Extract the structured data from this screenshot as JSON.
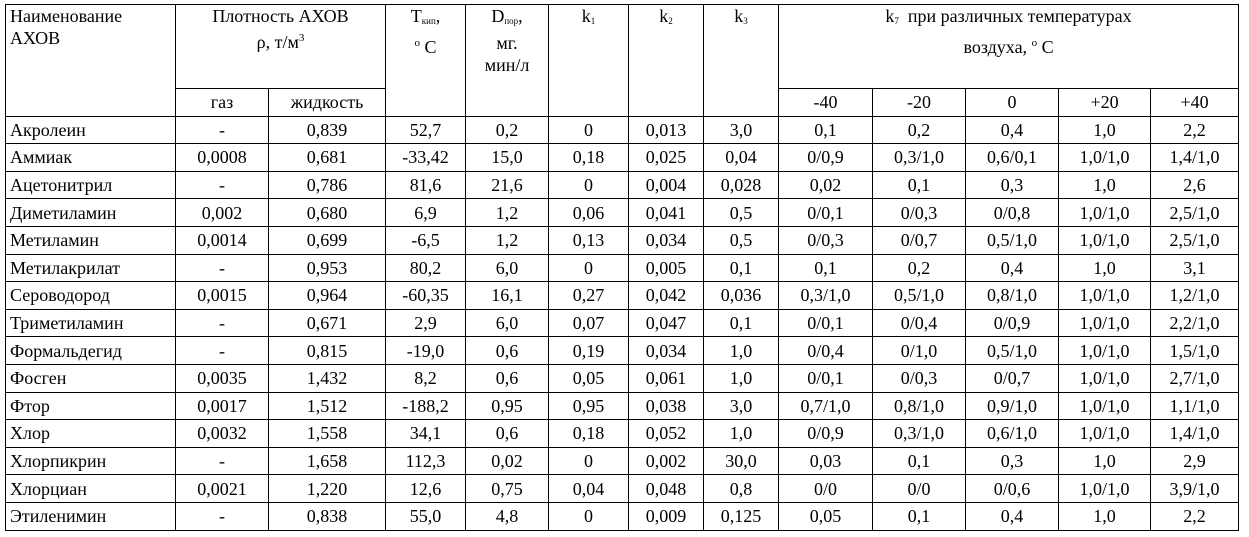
{
  "header": {
    "name_line1": "Наименование",
    "name_line2": "АХОВ",
    "density": "Плотность АХОВ",
    "density_symbol": "ρ,  т/м",
    "density_exp": "3",
    "gas": "газ",
    "liquid": "жидкость",
    "t_main": "T",
    "t_sub": "кип",
    "t_comma": ",",
    "t_deg": "о",
    "t_unit": "C",
    "d_main": "D",
    "d_sub": "пор",
    "d_comma": ",",
    "d_unit_line1": "мг.",
    "d_unit_line2": "мин/л",
    "k1_main": "k",
    "k1_sub": "1",
    "k2_main": "k",
    "k2_sub": "2",
    "k3_main": "k",
    "k3_sub": "3",
    "k7_main": "k",
    "k7_sub": "7",
    "k7_text_line1": "при различных температурах",
    "k7_text_line2": "воздуха,",
    "k7_deg": "о",
    "k7_unit": "C",
    "temps": [
      "-40",
      "-20",
      "0",
      "+20",
      "+40"
    ]
  },
  "rows": [
    [
      "Акролеин",
      "-",
      "0,839",
      "52,7",
      "0,2",
      "0",
      "0,013",
      "3,0",
      "0,1",
      "0,2",
      "0,4",
      "1,0",
      "2,2"
    ],
    [
      "Аммиак",
      "0,0008",
      "0,681",
      "-33,42",
      "15,0",
      "0,18",
      "0,025",
      "0,04",
      "0/0,9",
      "0,3/1,0",
      "0,6/0,1",
      "1,0/1,0",
      "1,4/1,0"
    ],
    [
      "Ацетонитрил",
      "-",
      "0,786",
      "81,6",
      "21,6",
      "0",
      "0,004",
      "0,028",
      "0,02",
      "0,1",
      "0,3",
      "1,0",
      "2,6"
    ],
    [
      "Диметиламин",
      "0,002",
      "0,680",
      "6,9",
      "1,2",
      "0,06",
      "0,041",
      "0,5",
      "0/0,1",
      "0/0,3",
      "0/0,8",
      "1,0/1,0",
      "2,5/1,0"
    ],
    [
      "Метиламин",
      "0,0014",
      "0,699",
      "-6,5",
      "1,2",
      "0,13",
      "0,034",
      "0,5",
      "0/0,3",
      "0/0,7",
      "0,5/1,0",
      "1,0/1,0",
      "2,5/1,0"
    ],
    [
      "Метилакрилат",
      "-",
      "0,953",
      "80,2",
      "6,0",
      "0",
      "0,005",
      "0,1",
      "0,1",
      "0,2",
      "0,4",
      "1,0",
      "3,1"
    ],
    [
      "Сероводород",
      "0,0015",
      "0,964",
      "-60,35",
      "16,1",
      "0,27",
      "0,042",
      "0,036",
      "0,3/1,0",
      "0,5/1,0",
      "0,8/1,0",
      "1,0/1,0",
      "1,2/1,0"
    ],
    [
      "Триметиламин",
      "-",
      "0,671",
      "2,9",
      "6,0",
      "0,07",
      "0,047",
      "0,1",
      "0/0,1",
      "0/0,4",
      "0/0,9",
      "1,0/1,0",
      "2,2/1,0"
    ],
    [
      "Формальдегид",
      "-",
      "0,815",
      "-19,0",
      "0,6",
      "0,19",
      "0,034",
      "1,0",
      "0/0,4",
      "0/1,0",
      "0,5/1,0",
      "1,0/1,0",
      "1,5/1,0"
    ],
    [
      "Фосген",
      "0,0035",
      "1,432",
      "8,2",
      "0,6",
      "0,05",
      "0,061",
      "1,0",
      "0/0,1",
      "0/0,3",
      "0/0,7",
      "1,0/1,0",
      "2,7/1,0"
    ],
    [
      "Фтор",
      "0,0017",
      "1,512",
      "-188,2",
      "0,95",
      "0,95",
      "0,038",
      "3,0",
      "0,7/1,0",
      "0,8/1,0",
      "0,9/1,0",
      "1,0/1,0",
      "1,1/1,0"
    ],
    [
      "Хлор",
      "0,0032",
      "1,558",
      "34,1",
      "0,6",
      "0,18",
      "0,052",
      "1,0",
      "0/0,9",
      "0,3/1,0",
      "0,6/1,0",
      "1,0/1,0",
      "1,4/1,0"
    ],
    [
      "Хлорпикрин",
      "-",
      "1,658",
      "112,3",
      "0,02",
      "0",
      "0,002",
      "30,0",
      "0,03",
      "0,1",
      "0,3",
      "1,0",
      "2,9"
    ],
    [
      "Хлорциан",
      "0,0021",
      "1,220",
      "12,6",
      "0,75",
      "0,04",
      "0,048",
      "0,8",
      "0/0",
      "0/0",
      "0/0,6",
      "1,0/1,0",
      "3,9/1,0"
    ],
    [
      "Этиленимин",
      "-",
      "0,838",
      "55,0",
      "4,8",
      "0",
      "0,009",
      "0,125",
      "0,05",
      "0,1",
      "0,4",
      "1,0",
      "2,2"
    ]
  ]
}
